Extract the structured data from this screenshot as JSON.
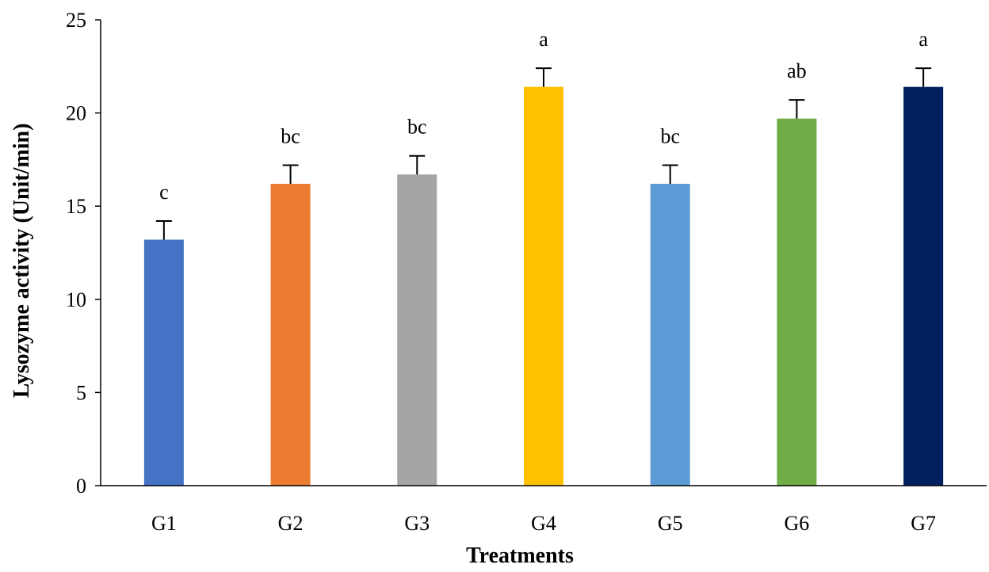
{
  "chart_data": {
    "type": "bar",
    "title": "",
    "xlabel": "Treatments",
    "ylabel": "Lysozyme activity (Unit/min)",
    "ylim": [
      0,
      25
    ],
    "yticks": [
      0,
      5,
      10,
      15,
      20,
      25
    ],
    "categories": [
      "G1",
      "G2",
      "G3",
      "G4",
      "G5",
      "G6",
      "G7"
    ],
    "values": [
      13.2,
      16.2,
      16.7,
      21.4,
      16.2,
      19.7,
      21.4
    ],
    "errors": [
      1.0,
      1.0,
      1.0,
      1.0,
      1.0,
      1.0,
      1.0
    ],
    "significance_labels": [
      "c",
      "bc",
      "bc",
      "a",
      "bc",
      "ab",
      "a"
    ],
    "colors": [
      "#4472C4",
      "#ED7D31",
      "#A5A5A5",
      "#FFC000",
      "#5B9BD5",
      "#70AD47",
      "#002060"
    ],
    "grid": false,
    "legend": "none"
  }
}
